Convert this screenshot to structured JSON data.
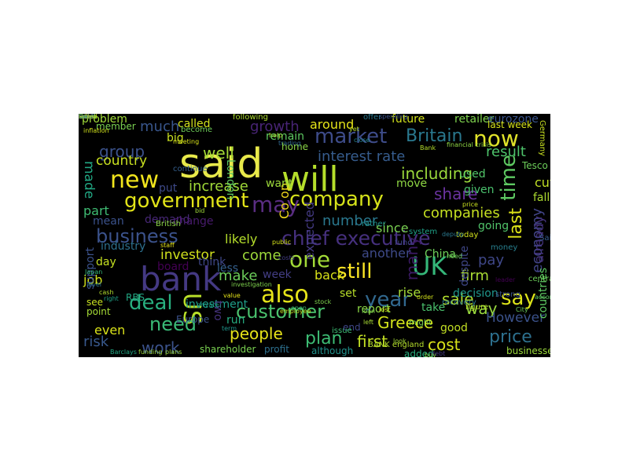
{
  "figure": {
    "type": "word-cloud",
    "background": "#000000",
    "colormap": "viridis"
  },
  "words": [
    {
      "text": "said",
      "color": "#e8e94a"
    },
    {
      "text": "bank",
      "color": "#443983"
    },
    {
      "text": "will",
      "color": "#b5de2b"
    },
    {
      "text": "government",
      "color": "#e2e418"
    },
    {
      "text": "company",
      "color": "#d5e21a"
    },
    {
      "text": "new",
      "color": "#f1e51d"
    },
    {
      "text": "market",
      "color": "#3e4c8a"
    },
    {
      "text": "also",
      "color": "#e6e419"
    },
    {
      "text": "business",
      "color": "#3b528b"
    },
    {
      "text": "now",
      "color": "#e1e32a"
    },
    {
      "text": "chief executive",
      "color": "#46307e"
    },
    {
      "text": "UK",
      "color": "#35b779"
    },
    {
      "text": "year",
      "color": "#31688e"
    },
    {
      "text": "customer",
      "color": "#4ac16d"
    },
    {
      "text": "time",
      "color": "#5ec962"
    },
    {
      "text": "last",
      "color": "#dde318"
    },
    {
      "text": "deal",
      "color": "#29af7f"
    },
    {
      "text": "US",
      "color": "#b8de29"
    },
    {
      "text": "say",
      "color": "#dce319"
    },
    {
      "text": "still",
      "color": "#fde725"
    },
    {
      "text": "one",
      "color": "#a2da37"
    },
    {
      "text": "people",
      "color": "#e7e419"
    },
    {
      "text": "price",
      "color": "#2d708e"
    },
    {
      "text": "plan",
      "color": "#3dbc74"
    },
    {
      "text": "Greece",
      "color": "#d2e21b"
    },
    {
      "text": "need",
      "color": "#3aba76"
    },
    {
      "text": "group",
      "color": "#3b528b"
    },
    {
      "text": "Britain",
      "color": "#2a788e"
    },
    {
      "text": "interest rate",
      "color": "#365c8d"
    },
    {
      "text": "well",
      "color": "#a5db36"
    },
    {
      "text": "much",
      "color": "#39568c"
    },
    {
      "text": "growth",
      "color": "#482475"
    },
    {
      "text": "share",
      "color": "#6a33a0"
    },
    {
      "text": "may",
      "color": "#5a2d82"
    },
    {
      "text": "including",
      "color": "#9bd93c"
    },
    {
      "text": "companies",
      "color": "#c5e021"
    },
    {
      "text": "increase",
      "color": "#a0da39"
    },
    {
      "text": "country",
      "color": "#c8e020"
    },
    {
      "text": "made",
      "color": "#22a884"
    },
    {
      "text": "part",
      "color": "#3fbc73"
    },
    {
      "text": "expected",
      "color": "#443a83"
    },
    {
      "text": "Co op",
      "color": "#ecd51a"
    },
    {
      "text": "many",
      "color": "#3b1a64"
    },
    {
      "text": "economy",
      "color": "#414487"
    },
    {
      "text": "already",
      "color": "#46337e"
    },
    {
      "text": "investor",
      "color": "#d0e11c"
    },
    {
      "text": "sale",
      "color": "#b2dd2d"
    },
    {
      "text": "result",
      "color": "#4ec36b"
    },
    {
      "text": "way",
      "color": "#98d83e"
    },
    {
      "text": "cut",
      "color": "#c0df25"
    },
    {
      "text": "fall",
      "color": "#addc30"
    },
    {
      "text": "first",
      "color": "#c2df23"
    },
    {
      "text": "cost",
      "color": "#d8e219"
    },
    {
      "text": "However",
      "color": "#3b528b"
    },
    {
      "text": "work",
      "color": "#3b528b"
    },
    {
      "text": "risk",
      "color": "#38588c"
    },
    {
      "text": "even",
      "color": "#d9e219"
    },
    {
      "text": "job",
      "color": "#d1e21b"
    },
    {
      "text": "make",
      "color": "#6ccd5a"
    },
    {
      "text": "come",
      "color": "#9dd93b"
    },
    {
      "text": "likely",
      "color": "#b5de2b"
    },
    {
      "text": "number",
      "color": "#2a788e"
    },
    {
      "text": "since",
      "color": "#7ad151"
    },
    {
      "text": "another",
      "color": "#3e4a89"
    },
    {
      "text": "firm",
      "color": "#a8db34"
    },
    {
      "text": "pay",
      "color": "#3f4788"
    },
    {
      "text": "around",
      "color": "#e5e419"
    },
    {
      "text": "future",
      "color": "#d2e21b"
    },
    {
      "text": "retailer",
      "color": "#7fd34e"
    },
    {
      "text": "eurozone",
      "color": "#3a548c"
    },
    {
      "text": "problem",
      "color": "#a0da39"
    },
    {
      "text": "called",
      "color": "#d0e11c"
    },
    {
      "text": "remain",
      "color": "#5ec962"
    },
    {
      "text": "London",
      "color": "#5ec962"
    },
    {
      "text": "big",
      "color": "#c8e020"
    },
    {
      "text": "put",
      "color": "#3e4a89"
    },
    {
      "text": "want",
      "color": "#9dd93b"
    },
    {
      "text": "move",
      "color": "#8fd744"
    },
    {
      "text": "used",
      "color": "#52c569"
    },
    {
      "text": "given",
      "color": "#4ac16d"
    },
    {
      "text": "mean",
      "color": "#3b528b"
    },
    {
      "text": "demand",
      "color": "#482878"
    },
    {
      "text": "change",
      "color": "#481b6d"
    },
    {
      "text": "industry",
      "color": "#2d708e"
    },
    {
      "text": "day",
      "color": "#c5e021"
    },
    {
      "text": "board",
      "color": "#440154"
    },
    {
      "text": "Europe",
      "color": "#3b528b"
    },
    {
      "text": "think",
      "color": "#3f4788"
    },
    {
      "text": "less",
      "color": "#35608d"
    },
    {
      "text": "week",
      "color": "#433e85"
    },
    {
      "text": "back",
      "color": "#d8e219"
    },
    {
      "text": "set",
      "color": "#b8de29"
    },
    {
      "text": "report",
      "color": "#8bd646"
    },
    {
      "text": "rise",
      "color": "#a5db36"
    },
    {
      "text": "China",
      "color": "#6ece58"
    },
    {
      "text": "decision",
      "color": "#1f968b"
    },
    {
      "text": "despite",
      "color": "#3f4788"
    },
    {
      "text": "going",
      "color": "#50c46a"
    },
    {
      "text": "see",
      "color": "#c8e020"
    },
    {
      "text": "point",
      "color": "#a5db36"
    },
    {
      "text": "RBS",
      "color": "#22a884"
    },
    {
      "text": "investment",
      "color": "#1f9e89"
    },
    {
      "text": "two",
      "color": "#46337e"
    },
    {
      "text": "run",
      "color": "#27ad81"
    },
    {
      "text": "take",
      "color": "#4ac16d"
    },
    {
      "text": "good",
      "color": "#c2df23"
    },
    {
      "text": "end",
      "color": "#3f4788"
    },
    {
      "text": "added",
      "color": "#29af7f"
    },
    {
      "text": "profit",
      "color": "#2d708e"
    },
    {
      "text": "shareholder",
      "color": "#7ad151"
    },
    {
      "text": "businesses",
      "color": "#9bd93c"
    },
    {
      "text": "countries",
      "color": "#5ec962"
    },
    {
      "text": "last week",
      "color": "#d5e21a"
    },
    {
      "text": "Tesco",
      "color": "#6ccd5a"
    },
    {
      "text": "member",
      "color": "#7ad151"
    },
    {
      "text": "home",
      "color": "#8bd646"
    },
    {
      "text": "following",
      "color": "#addc30"
    },
    {
      "text": "offer",
      "color": "#2a788e"
    },
    {
      "text": "support",
      "color": "#3b528b"
    },
    {
      "text": "although",
      "color": "#20928c"
    },
    {
      "text": "figure",
      "color": "#b5de2b"
    },
    {
      "text": "BANK england",
      "color": "#b5de2b"
    },
    {
      "text": "might",
      "color": "#75d054"
    },
    {
      "text": "system",
      "color": "#1fa187"
    },
    {
      "text": "today",
      "color": "#d0e11c"
    },
    {
      "text": "rather",
      "color": "#20928c"
    },
    {
      "text": "money",
      "color": "#277f8e"
    },
    {
      "text": "Sainsbury",
      "color": "#365c8d"
    },
    {
      "text": "issue",
      "color": "#3dbc74"
    },
    {
      "text": "debt",
      "color": "#443983"
    },
    {
      "text": "fund",
      "color": "#404688"
    },
    {
      "text": "value",
      "color": "#e5e419"
    },
    {
      "text": "right",
      "color": "#20a386"
    },
    {
      "text": "British",
      "color": "#8bd646"
    },
    {
      "text": "continue",
      "color": "#355f8d"
    },
    {
      "text": "become",
      "color": "#6ece58"
    },
    {
      "text": "meeting",
      "color": "#d8e219"
    },
    {
      "text": "inflation",
      "color": "#d0e11c"
    },
    {
      "text": "recovery",
      "color": "#2a788e"
    },
    {
      "text": "strong",
      "color": "#3b528b"
    },
    {
      "text": "help",
      "color": "#addc30"
    },
    {
      "text": "Germany",
      "color": "#c8e020"
    },
    {
      "text": "central bank",
      "color": "#6ece58"
    },
    {
      "text": "public",
      "color": "#d5e21a"
    },
    {
      "text": "yet",
      "color": "#b8de29"
    },
    {
      "text": "leader",
      "color": "#440154"
    },
    {
      "text": "according",
      "color": "#5ec962"
    },
    {
      "text": "close",
      "color": "#25848e"
    },
    {
      "text": "left",
      "color": "#a8db34"
    },
    {
      "text": "financial crisis",
      "color": "#8fd744"
    },
    {
      "text": "investigation",
      "color": "#7fd34e"
    },
    {
      "text": "employee",
      "color": "#c2df23"
    },
    {
      "text": "lost",
      "color": "#d8e219"
    },
    {
      "text": "Bank",
      "color": "#b5de2b"
    },
    {
      "text": "Barclays",
      "color": "#22a884"
    },
    {
      "text": "funding",
      "color": "#9dd93b"
    },
    {
      "text": "loan",
      "color": "#7ad151"
    },
    {
      "text": "term",
      "color": "#1f968b"
    },
    {
      "text": "level",
      "color": "#2c728e"
    },
    {
      "text": "cash",
      "color": "#b2dd2d"
    },
    {
      "text": "Japan",
      "color": "#35b779"
    },
    {
      "text": "City",
      "color": "#6ccd5a"
    },
    {
      "text": "staff",
      "color": "#e5e419"
    },
    {
      "text": "stock",
      "color": "#7fd34e"
    },
    {
      "text": "look",
      "color": "#a5db36"
    },
    {
      "text": "trading",
      "color": "#31688e"
    },
    {
      "text": "costs",
      "color": "#433e85"
    },
    {
      "text": "bid",
      "color": "#a0da39"
    },
    {
      "text": "price",
      "color": "#c8e020"
    },
    {
      "text": "need",
      "color": "#6ece58"
    },
    {
      "text": "spending",
      "color": "#3b528b"
    },
    {
      "text": "order",
      "color": "#d2e21b"
    },
    {
      "text": "private",
      "color": "#1f9e89"
    },
    {
      "text": "open",
      "color": "#3dbc74"
    },
    {
      "text": "buy",
      "color": "#8bd646"
    },
    {
      "text": "plans",
      "color": "#9bd93c"
    },
    {
      "text": "deputy",
      "color": "#2a788e"
    },
    {
      "text": "weak",
      "color": "#2c728e"
    },
    {
      "text": "sell",
      "color": "#a2da37"
    },
    {
      "text": "Greek",
      "color": "#5ec962"
    },
    {
      "text": "bond",
      "color": "#3b528b"
    },
    {
      "text": "asked",
      "color": "#d0e11c"
    },
    {
      "text": "tax",
      "color": "#22a884"
    },
    {
      "text": "held",
      "color": "#404688"
    },
    {
      "text": "late",
      "color": "#443983"
    },
    {
      "text": "latest",
      "color": "#9dd93b"
    }
  ]
}
